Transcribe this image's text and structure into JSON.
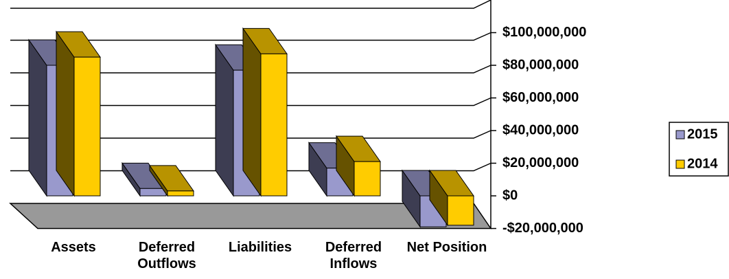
{
  "chart_data": {
    "type": "bar3d",
    "categories": [
      "Assets",
      "Deferred Outflows",
      "Liabilities",
      "Deferred Inflows",
      "Net Position"
    ],
    "series": [
      {
        "name": "2015",
        "color": "#9999cc",
        "values": [
          80000000,
          4500000,
          77000000,
          17000000,
          -19000000
        ]
      },
      {
        "name": "2014",
        "color": "#ffcc00",
        "values": [
          85000000,
          3000000,
          87000000,
          21000000,
          -18000000
        ]
      }
    ],
    "ylim": [
      -20000000,
      120000000
    ],
    "yticks": [
      {
        "value": -20000000,
        "label": "-$20,000,000"
      },
      {
        "value": 0,
        "label": "$0"
      },
      {
        "value": 20000000,
        "label": "$20,000,000"
      },
      {
        "value": 40000000,
        "label": "$40,000,000"
      },
      {
        "value": 60000000,
        "label": "$60,000,000"
      },
      {
        "value": 80000000,
        "label": "$80,000,000"
      },
      {
        "value": 100000000,
        "label": "$100,000,000"
      }
    ],
    "grid": true,
    "legend": "right"
  }
}
